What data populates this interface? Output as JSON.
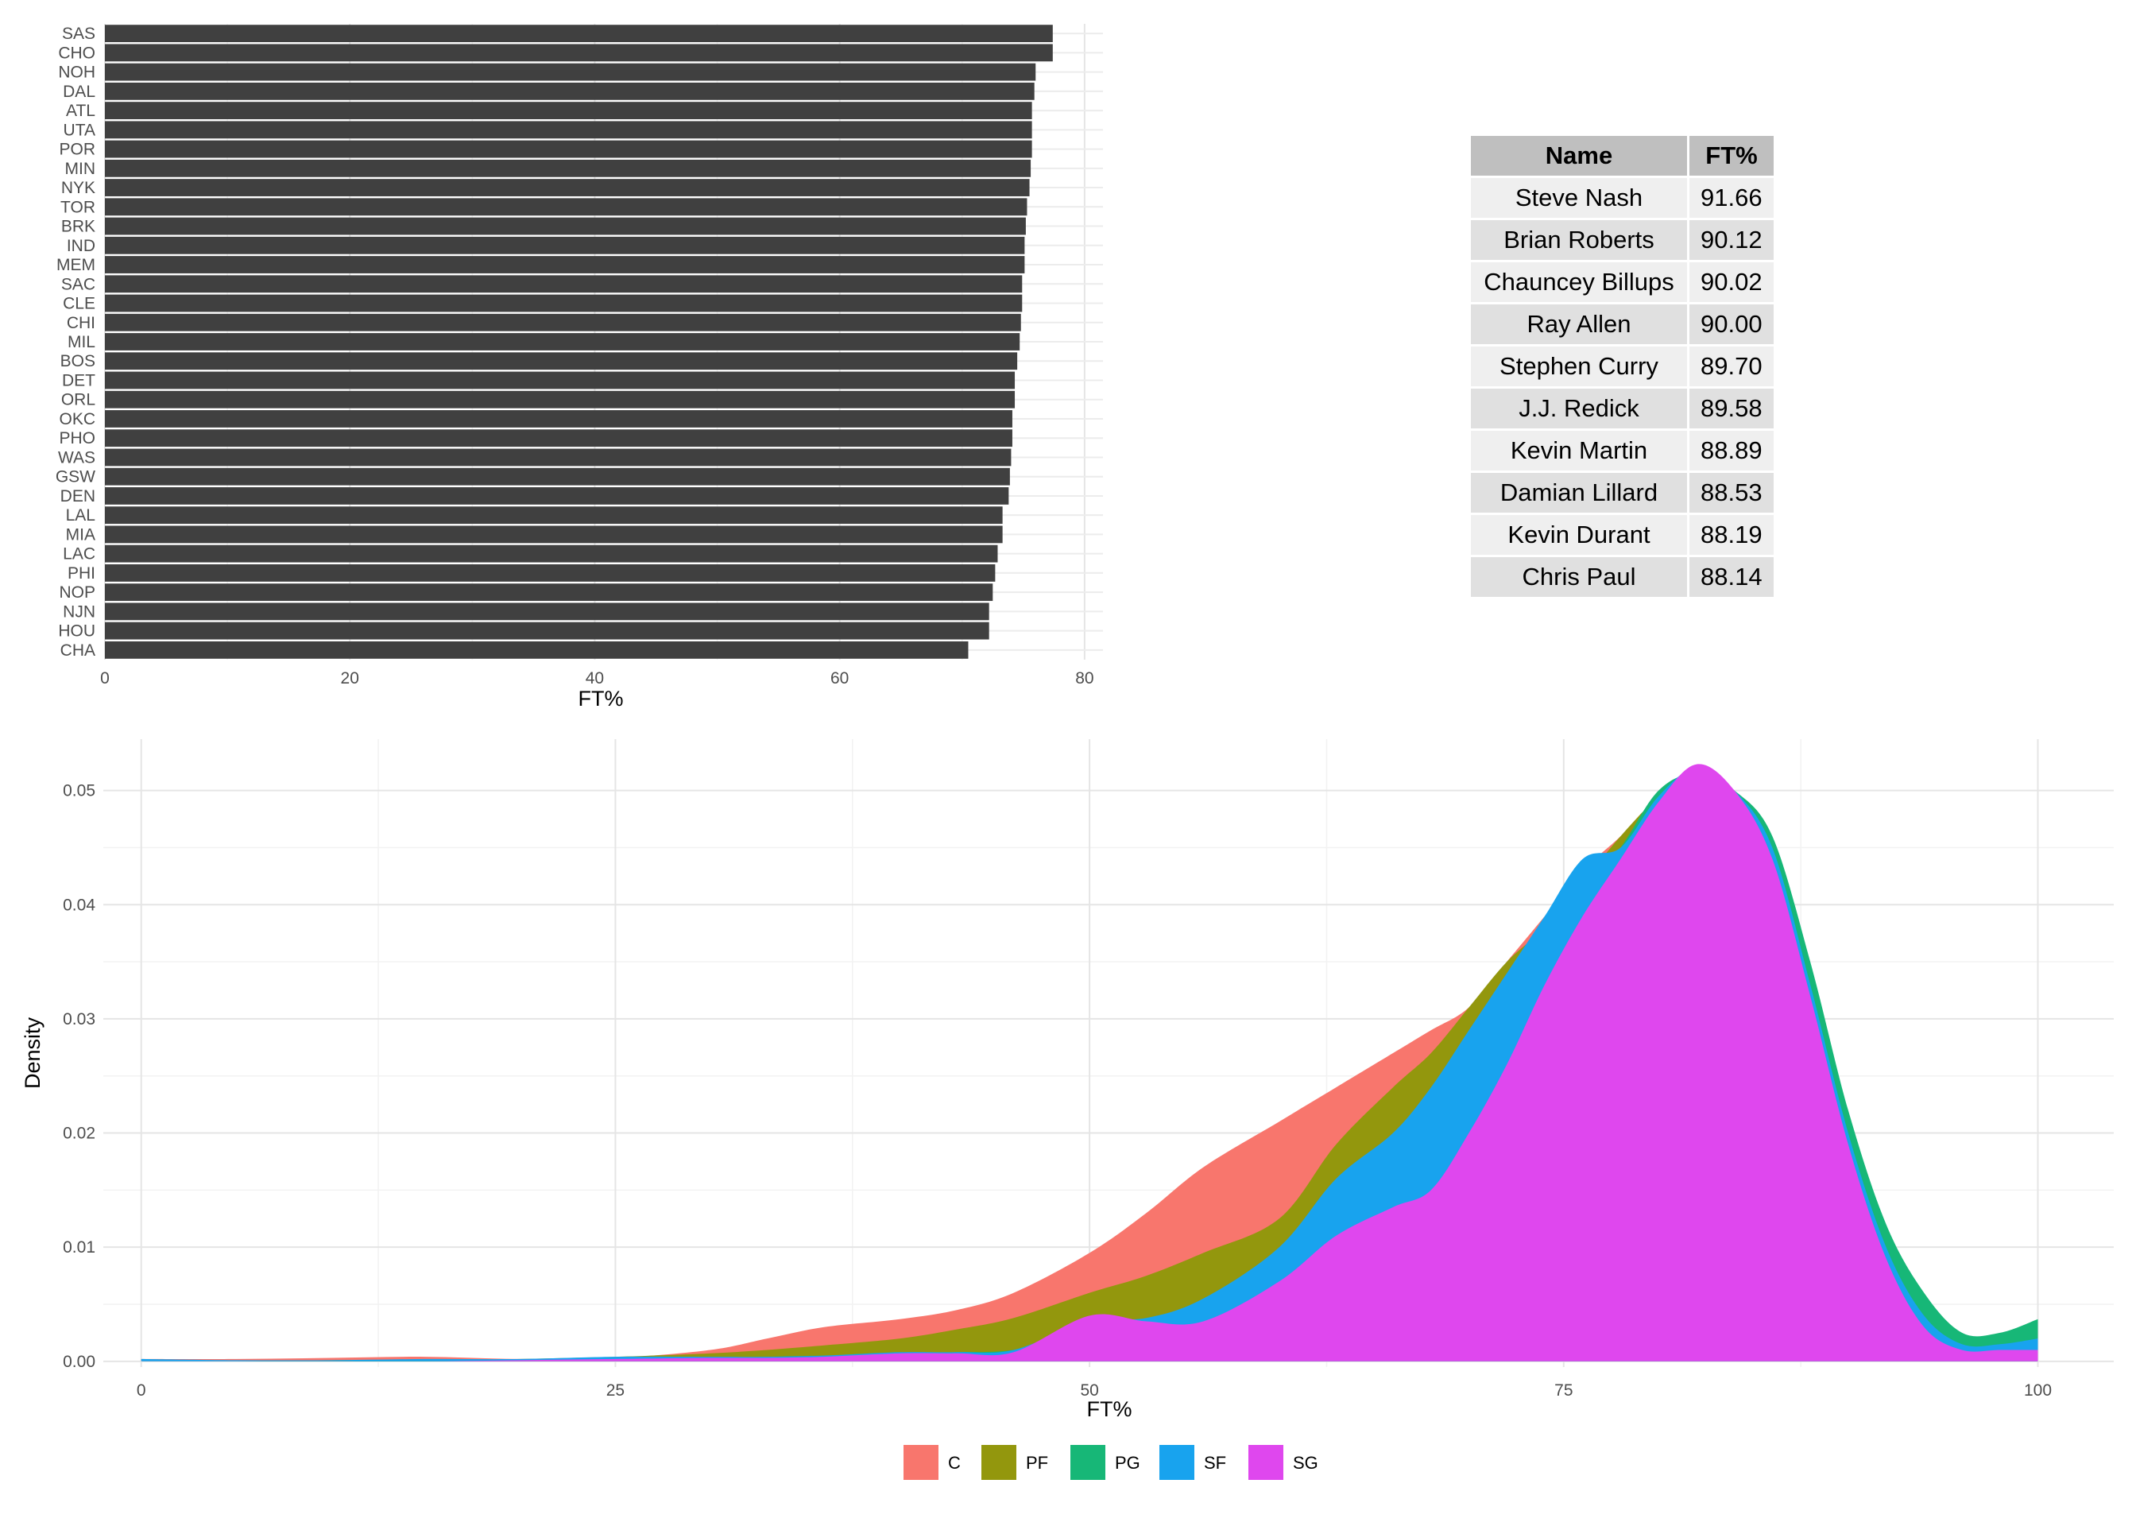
{
  "chart_data": [
    {
      "type": "bar",
      "orientation": "horizontal",
      "categories": [
        "SAS",
        "CHO",
        "NOH",
        "DAL",
        "ATL",
        "UTA",
        "POR",
        "MIN",
        "NYK",
        "TOR",
        "BRK",
        "IND",
        "MEM",
        "SAC",
        "CLE",
        "CHI",
        "MIL",
        "BOS",
        "DET",
        "ORL",
        "OKC",
        "PHO",
        "WAS",
        "GSW",
        "DEN",
        "LAL",
        "MIA",
        "LAC",
        "PHI",
        "NOP",
        "NJN",
        "HOU",
        "CHA"
      ],
      "values": [
        77.4,
        77.4,
        76.0,
        75.9,
        75.7,
        75.7,
        75.7,
        75.6,
        75.5,
        75.3,
        75.2,
        75.1,
        75.1,
        74.9,
        74.9,
        74.8,
        74.7,
        74.5,
        74.3,
        74.3,
        74.1,
        74.1,
        74.0,
        73.9,
        73.8,
        73.3,
        73.3,
        72.9,
        72.7,
        72.5,
        72.2,
        72.2,
        70.5
      ],
      "xlabel": "FT%",
      "ylabel": "",
      "xlim": [
        0,
        81.5
      ],
      "xticks": [
        0,
        20,
        40,
        60,
        80
      ],
      "bar_color": "#404040",
      "grid": true
    },
    {
      "type": "table",
      "columns": [
        "Name",
        "FT%"
      ],
      "rows": [
        [
          "Steve Nash",
          "91.66"
        ],
        [
          "Brian Roberts",
          "90.12"
        ],
        [
          "Chauncey Billups",
          "90.02"
        ],
        [
          "Ray Allen",
          "90.00"
        ],
        [
          "Stephen Curry",
          "89.70"
        ],
        [
          "J.J. Redick",
          "89.58"
        ],
        [
          "Kevin Martin",
          "88.89"
        ],
        [
          "Damian Lillard",
          "88.53"
        ],
        [
          "Kevin Durant",
          "88.19"
        ],
        [
          "Chris Paul",
          "88.14"
        ]
      ]
    },
    {
      "type": "area",
      "subtype": "density",
      "xlabel": "FT%",
      "ylabel": "Density",
      "xlim": [
        -2,
        104
      ],
      "ylim": [
        -0.0005,
        0.0545
      ],
      "xticks": [
        0,
        25,
        50,
        75,
        100
      ],
      "yticks": [
        0.0,
        0.01,
        0.02,
        0.03,
        0.04,
        0.05
      ],
      "ytick_labels": [
        "0.00",
        "0.01",
        "0.02",
        "0.03",
        "0.04",
        "0.05"
      ],
      "legend_position": "bottom",
      "grid": true,
      "series": [
        {
          "name": "C",
          "color": "#F8766D",
          "x": [
            0,
            5,
            10,
            15,
            20,
            25,
            30,
            33,
            36,
            40,
            43,
            46,
            50,
            53,
            56,
            60,
            63,
            66,
            68,
            70,
            72,
            74,
            76,
            78,
            80,
            82,
            84,
            86,
            88,
            90,
            92,
            94,
            96,
            98,
            100
          ],
          "y": [
            0.0002,
            0.0002,
            0.0003,
            0.0004,
            0.0002,
            0.0003,
            0.001,
            0.002,
            0.003,
            0.0037,
            0.0045,
            0.006,
            0.0095,
            0.013,
            0.017,
            0.021,
            0.024,
            0.027,
            0.029,
            0.031,
            0.035,
            0.039,
            0.043,
            0.046,
            0.0495,
            0.052,
            0.05,
            0.045,
            0.033,
            0.02,
            0.01,
            0.004,
            0.0015,
            0.001,
            0.001
          ]
        },
        {
          "name": "PF",
          "color": "#93970D",
          "x": [
            0,
            5,
            10,
            15,
            20,
            25,
            30,
            33,
            36,
            40,
            43,
            46,
            50,
            53,
            56,
            60,
            63,
            66,
            68,
            70,
            72,
            74,
            76,
            78,
            80,
            82,
            84,
            86,
            88,
            90,
            92,
            94,
            96,
            98,
            100
          ],
          "y": [
            0.0,
            0.0,
            0.0001,
            0.0001,
            0.0002,
            0.0004,
            0.0007,
            0.001,
            0.0014,
            0.002,
            0.0028,
            0.0038,
            0.006,
            0.0075,
            0.0095,
            0.0125,
            0.019,
            0.024,
            0.027,
            0.031,
            0.035,
            0.038,
            0.042,
            0.046,
            0.0495,
            0.052,
            0.05,
            0.045,
            0.033,
            0.02,
            0.01,
            0.004,
            0.0015,
            0.001,
            0.001
          ]
        },
        {
          "name": "PG",
          "color": "#17B777",
          "x": [
            0,
            5,
            10,
            15,
            20,
            25,
            30,
            33,
            36,
            40,
            43,
            46,
            50,
            53,
            56,
            60,
            63,
            66,
            68,
            70,
            72,
            74,
            76,
            78,
            80,
            82,
            84,
            86,
            88,
            90,
            92,
            94,
            96,
            98,
            100
          ],
          "y": [
            0.0,
            0.0,
            0.0,
            0.0001,
            0.0001,
            0.0002,
            0.0003,
            0.0004,
            0.0005,
            0.0006,
            0.0008,
            0.001,
            0.0025,
            0.0035,
            0.0045,
            0.007,
            0.012,
            0.016,
            0.02,
            0.025,
            0.03,
            0.036,
            0.041,
            0.045,
            0.05,
            0.0515,
            0.05,
            0.046,
            0.035,
            0.022,
            0.012,
            0.006,
            0.0025,
            0.0025,
            0.0037
          ]
        },
        {
          "name": "SF",
          "color": "#18A3EE",
          "x": [
            0,
            5,
            10,
            15,
            20,
            25,
            30,
            33,
            36,
            40,
            43,
            46,
            50,
            53,
            56,
            60,
            63,
            66,
            68,
            70,
            72,
            74,
            76,
            78,
            80,
            82,
            84,
            86,
            88,
            90,
            92,
            94,
            96,
            98,
            100
          ],
          "y": [
            0.0002,
            0.0001,
            0.0001,
            0.0002,
            0.0002,
            0.0004,
            0.0004,
            0.0004,
            0.0005,
            0.0008,
            0.0008,
            0.001,
            0.0035,
            0.0038,
            0.0055,
            0.01,
            0.016,
            0.02,
            0.024,
            0.029,
            0.034,
            0.039,
            0.044,
            0.045,
            0.0495,
            0.052,
            0.05,
            0.045,
            0.033,
            0.02,
            0.01,
            0.004,
            0.0015,
            0.0015,
            0.002
          ]
        },
        {
          "name": "SG",
          "color": "#DF47EE",
          "x": [
            0,
            5,
            10,
            15,
            20,
            25,
            30,
            33,
            36,
            40,
            43,
            46,
            50,
            53,
            56,
            60,
            63,
            66,
            68,
            70,
            72,
            74,
            76,
            78,
            80,
            82,
            84,
            86,
            88,
            90,
            92,
            94,
            96,
            98,
            100
          ],
          "y": [
            0.0,
            0.0,
            0.0,
            0.0,
            0.0001,
            0.0002,
            0.0003,
            0.0003,
            0.0004,
            0.0007,
            0.0007,
            0.0008,
            0.004,
            0.0035,
            0.0035,
            0.007,
            0.011,
            0.0135,
            0.015,
            0.02,
            0.026,
            0.033,
            0.039,
            0.044,
            0.049,
            0.0523,
            0.05,
            0.044,
            0.032,
            0.019,
            0.009,
            0.003,
            0.001,
            0.001,
            0.001
          ]
        }
      ]
    }
  ]
}
